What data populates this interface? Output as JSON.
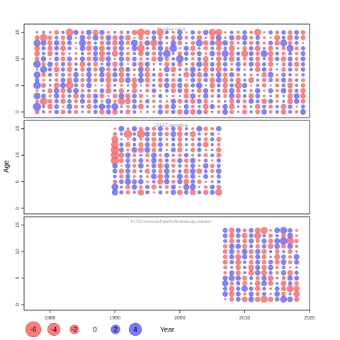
{
  "chart_data": {
    "type": "scatter",
    "subtype": "bubble-residuals",
    "ylabel": "Age",
    "xlim": [
      1976,
      2020
    ],
    "ylim": [
      -0.5,
      15.8
    ],
    "xticks": [
      1980,
      1990,
      2000,
      2010,
      2020
    ],
    "yticks": [
      0,
      5,
      10,
      15
    ],
    "colors": {
      "negative": "#ff6b6b",
      "positive": "#6b6bff",
      "edge_negative": "#e04848",
      "edge_positive": "#4848e0",
      "frame": "#333333",
      "panel_title": "#999999"
    },
    "panels": [
      {
        "title": "Residual catch",
        "years": [
          1978,
          2019
        ],
        "ages": [
          0,
          15
        ],
        "highlights": [
          {
            "year": 1978,
            "age": 1,
            "value": 3.5
          },
          {
            "year": 1979,
            "age": 2,
            "value": -3.0
          },
          {
            "year": 1978,
            "age": 3,
            "value": 2.5
          },
          {
            "year": 1978,
            "age": 5,
            "value": 3.0
          },
          {
            "year": 1978,
            "age": 7,
            "value": 2.5
          },
          {
            "year": 1978,
            "age": 9,
            "value": 3.0
          },
          {
            "year": 1979,
            "age": 8,
            "value": 2.5
          },
          {
            "year": 1978,
            "age": 13,
            "value": 2.5
          },
          {
            "year": 1979,
            "age": 14,
            "value": -3.0
          },
          {
            "year": 1983,
            "age": 15,
            "value": -3.0
          },
          {
            "year": 1983,
            "age": 5,
            "value": -3.0
          },
          {
            "year": 1985,
            "age": 13,
            "value": 2.5
          },
          {
            "year": 1988,
            "age": 1,
            "value": 2.0
          },
          {
            "year": 1990,
            "age": 1,
            "value": 2.5
          },
          {
            "year": 1991,
            "age": 2,
            "value": -2.5
          },
          {
            "year": 1993,
            "age": 13,
            "value": 2.5
          },
          {
            "year": 1994,
            "age": 15,
            "value": -3.0
          },
          {
            "year": 1994,
            "age": 12,
            "value": -3.0
          },
          {
            "year": 1990,
            "age": 11,
            "value": -2.0
          },
          {
            "year": 1998,
            "age": 11,
            "value": 3.0
          },
          {
            "year": 1999,
            "age": 12,
            "value": 3.0
          },
          {
            "year": 2000,
            "age": 10,
            "value": 3.0
          },
          {
            "year": 1997,
            "age": 15,
            "value": -2.5
          },
          {
            "year": 2003,
            "age": 13,
            "value": 2.5
          },
          {
            "year": 2006,
            "age": 15,
            "value": -2.5
          },
          {
            "year": 2007,
            "age": 11,
            "value": 2.5
          },
          {
            "year": 2005,
            "age": 15,
            "value": -2.5
          },
          {
            "year": 2006,
            "age": 13,
            "value": -2.5
          },
          {
            "year": 2010,
            "age": 11,
            "value": -2.5
          },
          {
            "year": 2012,
            "age": 15,
            "value": -2.5
          },
          {
            "year": 2013,
            "age": 11,
            "value": 2.5
          },
          {
            "year": 2016,
            "age": 13,
            "value": 2.5
          },
          {
            "year": 2017,
            "age": 12,
            "value": 2.5
          },
          {
            "year": 2003,
            "age": 5,
            "value": 2.0
          },
          {
            "year": 2009,
            "age": 5,
            "value": -2.5
          },
          {
            "year": 1996,
            "age": 13,
            "value": -2.5
          }
        ]
      },
      {
        "title": "CPUETrapnetfleet",
        "years": [
          1990,
          2006
        ],
        "ages": [
          3,
          15
        ],
        "highlights": [
          {
            "year": 1990,
            "age": 9,
            "value": -3.5
          },
          {
            "year": 1990,
            "age": 10,
            "value": -3.5
          },
          {
            "year": 1990,
            "age": 11,
            "value": -3.5
          },
          {
            "year": 1990,
            "age": 12,
            "value": -3.0
          },
          {
            "year": 1990,
            "age": 13,
            "value": -2.5
          },
          {
            "year": 1992,
            "age": 14,
            "value": -3.5
          },
          {
            "year": 1994,
            "age": 14,
            "value": -3.5
          },
          {
            "year": 1990,
            "age": 4,
            "value": 2.5
          },
          {
            "year": 1990,
            "age": 3,
            "value": 2.0
          },
          {
            "year": 1992,
            "age": 5,
            "value": 2.0
          },
          {
            "year": 1994,
            "age": 3,
            "value": -2.0
          },
          {
            "year": 2001,
            "age": 4,
            "value": 2.0
          },
          {
            "year": 2002,
            "age": 4,
            "value": 2.0
          },
          {
            "year": 2006,
            "age": 3,
            "value": -2.5
          }
        ]
      },
      {
        "title": "FLT03:AcousticFleetNofIndividuals,millions",
        "years": [
          2007,
          2018
        ],
        "ages": [
          1,
          14
        ],
        "highlights": [
          {
            "year": 2016,
            "age": 14,
            "value": 2.5
          },
          {
            "year": 2016,
            "age": 12,
            "value": 3.0
          },
          {
            "year": 2017,
            "age": 12,
            "value": -3.0
          },
          {
            "year": 2013,
            "age": 14,
            "value": -2.5
          },
          {
            "year": 2012,
            "age": 13,
            "value": -2.5
          },
          {
            "year": 2007,
            "age": 4,
            "value": 2.0
          },
          {
            "year": 2008,
            "age": 5,
            "value": 2.0
          },
          {
            "year": 2013,
            "age": 1,
            "value": -2.5
          },
          {
            "year": 2016,
            "age": 1,
            "value": 2.5
          },
          {
            "year": 2017,
            "age": 3,
            "value": -2.5
          },
          {
            "year": 2018,
            "age": 2,
            "value": -2.0
          },
          {
            "year": 2010,
            "age": 3,
            "value": 2.0
          }
        ]
      }
    ],
    "legend": {
      "placement": "bottom-left",
      "values": [
        -6,
        -4,
        -2,
        0,
        2,
        4
      ],
      "labels": [
        "-6",
        "-4",
        "-2",
        "0",
        "2",
        "4"
      ],
      "title": "Year"
    }
  }
}
